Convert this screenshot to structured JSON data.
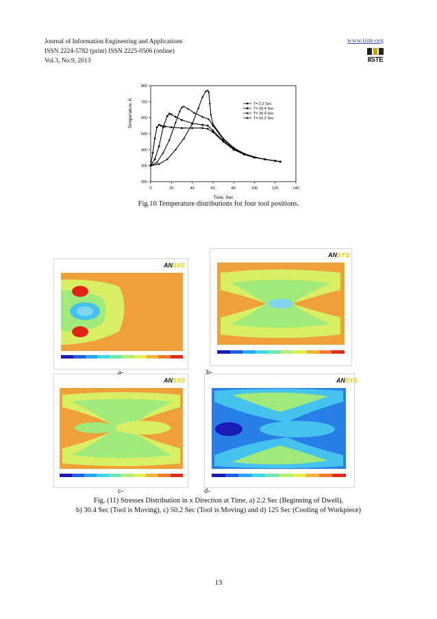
{
  "header": {
    "journal": "Journal of Information Engineering and Applications",
    "issn": "ISSN 2224-5782 (print) ISSN 2225-0506 (online)",
    "volume": "Vol.3, No.9, 2013",
    "website": "www.iiste.org",
    "logo_text": "IISTE"
  },
  "figure10": {
    "caption": "Fig.10 Temperature distributions for four tool positions.",
    "chart_data": {
      "type": "line",
      "xlabel": "Time, Sec",
      "ylabel": "Temperature, K",
      "xlim": [
        0,
        140
      ],
      "ylim": [
        200,
        800
      ],
      "xticks": [
        "0",
        "20",
        "40",
        "60",
        "80",
        "100",
        "120",
        "140"
      ],
      "yticks": [
        "200",
        "300",
        "400",
        "500",
        "600",
        "700",
        "800"
      ],
      "legend_position": "top-right",
      "series": [
        {
          "name": "T= 2.2 Sec",
          "marker": "circle",
          "x": [
            0,
            2,
            4,
            6,
            8,
            10,
            14,
            20,
            30,
            40,
            50,
            55,
            60,
            70,
            80,
            90,
            100,
            110,
            120,
            125
          ],
          "y": [
            300,
            380,
            470,
            540,
            555,
            550,
            545,
            540,
            535,
            535,
            535,
            530,
            510,
            450,
            400,
            370,
            350,
            340,
            330,
            325
          ]
        },
        {
          "name": "T= 18.4 Sec",
          "marker": "square",
          "x": [
            0,
            4,
            8,
            12,
            16,
            18,
            20,
            24,
            30,
            40,
            50,
            55,
            60,
            70,
            80,
            90,
            100,
            110,
            120,
            125
          ],
          "y": [
            300,
            340,
            420,
            540,
            610,
            625,
            620,
            605,
            585,
            565,
            555,
            550,
            520,
            455,
            405,
            372,
            352,
            340,
            330,
            325
          ]
        },
        {
          "name": "T= 30.4 Sec",
          "marker": "triangle-up",
          "x": [
            0,
            6,
            12,
            18,
            24,
            28,
            30,
            32,
            36,
            42,
            50,
            56,
            60,
            70,
            80,
            90,
            100,
            110,
            120,
            125
          ],
          "y": [
            300,
            320,
            380,
            460,
            570,
            640,
            665,
            670,
            655,
            630,
            605,
            590,
            550,
            465,
            410,
            375,
            353,
            340,
            330,
            325
          ]
        },
        {
          "name": "T= 50.2 Sec",
          "marker": "triangle-up",
          "x": [
            0,
            8,
            16,
            24,
            32,
            40,
            46,
            50,
            53,
            55,
            56,
            57,
            58,
            60,
            70,
            80,
            90,
            100,
            110,
            120,
            125
          ],
          "y": [
            300,
            310,
            340,
            400,
            470,
            560,
            660,
            730,
            765,
            770,
            760,
            690,
            620,
            560,
            470,
            412,
            376,
            354,
            340,
            330,
            325
          ]
        }
      ]
    }
  },
  "figure11": {
    "panels": [
      {
        "label": "a-",
        "logo": "AN",
        "logo_suffix": "SYS"
      },
      {
        "label": "b-",
        "logo": "AN",
        "logo_suffix": "SYS"
      },
      {
        "label": "c-",
        "logo": "AN",
        "logo_suffix": "SYS"
      },
      {
        "label": "d-",
        "logo": "AN",
        "logo_suffix": "SYS"
      }
    ],
    "caption_line1": "Fig.  (11) Stresses Distribution in x Direction at Time, a) 2.2 Sec (Beginning of Dwell),",
    "caption_line2": "b) 30.4 Sec (Tool is Moving), c) 50.2 Sec (Tool is Moving) and d) 125 Sec (Cooling of Workpiece)",
    "colorbar": [
      "#1a1ab8",
      "#1f5fe0",
      "#2aa5f2",
      "#3fd6e8",
      "#6fe8b0",
      "#aef07a",
      "#e4ee52",
      "#f0b43a",
      "#f07a2a",
      "#e02a1a"
    ],
    "colors": {
      "blue": "#2a3fd8",
      "cyan": "#45c3ee",
      "lightblue": "#7fd4f0",
      "green": "#9fea7a",
      "yellowgreen": "#d8ef63",
      "orange": "#f0a03a",
      "red": "#e0241a"
    }
  },
  "page_number": "13"
}
